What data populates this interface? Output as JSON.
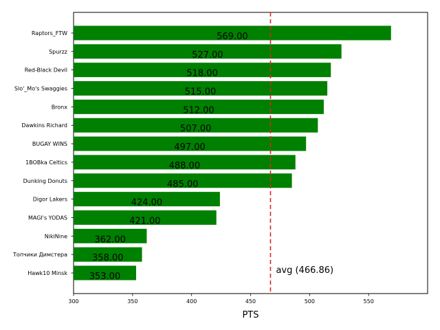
{
  "chart_data": {
    "type": "bar",
    "orientation": "horizontal",
    "categories": [
      "Raptors_FTW",
      "Spurzz",
      "Red-Black Devil",
      "Slo'_Mo's Swaggies",
      "Bronx",
      "Dawkins Richard",
      "BUGAY WINS",
      "1BOBka Celtics",
      "Dunking Donuts",
      "Digor Lakers",
      "MAGI's YODAS",
      "NikiNine",
      "Топчики Димстера",
      "Hawk10 Minsk"
    ],
    "values": [
      569,
      527,
      518,
      515,
      512,
      507,
      497,
      488,
      485,
      424,
      421,
      362,
      358,
      353
    ],
    "value_labels": [
      "569.00",
      "527.00",
      "518.00",
      "515.00",
      "512.00",
      "507.00",
      "497.00",
      "488.00",
      "485.00",
      "424.00",
      "421.00",
      "362.00",
      "358.00",
      "353.00"
    ],
    "xlabel": "PTS",
    "ylabel": "",
    "title": "",
    "xlim": [
      300,
      600
    ],
    "xticks": [
      "300",
      "350",
      "400",
      "450",
      "500",
      "550"
    ],
    "bar_color": "#008000",
    "average": {
      "value": 466.86,
      "label": "avg (466.86)",
      "color": "#d62728",
      "style": "dashed"
    },
    "grid": false,
    "legend": "none"
  }
}
